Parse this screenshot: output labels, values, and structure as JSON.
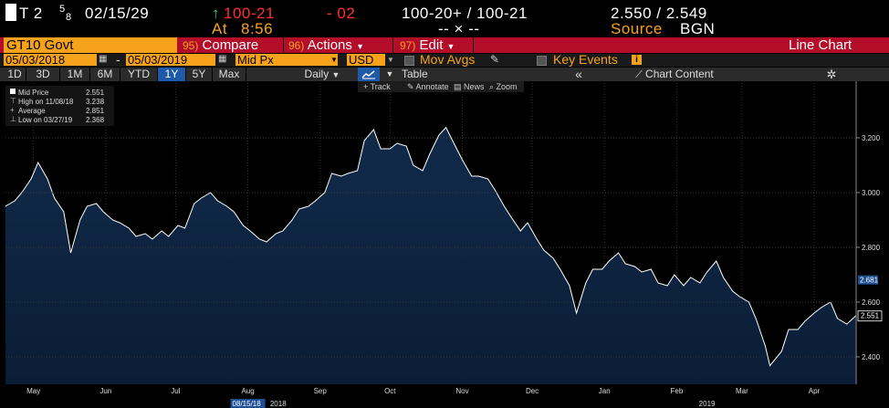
{
  "quote": {
    "security": "T 2",
    "coupon_num": "5",
    "coupon_den": "8",
    "maturity": "02/15/29",
    "arrow": "↑",
    "price": "100-21",
    "change": "- 02",
    "bid_ask": "100-20+ / 100-21",
    "yields": "2.550 / 2.549",
    "at_label": "At",
    "time": "8:56",
    "dashes": "-- × --",
    "source_label": "Source",
    "source": "BGN"
  },
  "menubar": {
    "ticker": "GT10 Govt",
    "compare_num": "95)",
    "compare": "Compare",
    "actions_num": "96)",
    "actions": "Actions",
    "edit_num": "97)",
    "edit": "Edit",
    "title": "Line Chart"
  },
  "toolbar2": {
    "start_date": "05/03/2018",
    "dash": "-",
    "end_date": "05/03/2019",
    "field": "Mid Px",
    "currency": "USD",
    "mov_avgs": "Mov Avgs",
    "key_events": "Key Events",
    "info_badge": "i"
  },
  "toolbar3": {
    "ranges": [
      "1D",
      "3D",
      "1M",
      "6M",
      "YTD",
      "1Y",
      "5Y",
      "Max"
    ],
    "selected": "1Y",
    "frequency": "Daily",
    "table": "Table",
    "collapse": "«",
    "chart_content": "Chart Content"
  },
  "chart_tools": [
    "Track",
    "Annotate",
    "News",
    "Zoom"
  ],
  "legend": {
    "rows": [
      {
        "label": "Mid Price",
        "value": "2.551"
      },
      {
        "label": "High on 11/08/18",
        "value": "3.238"
      },
      {
        "label": "Average",
        "value": "2.851"
      },
      {
        "label": "Low on 03/27/19",
        "value": "2.368"
      }
    ]
  },
  "colors": {
    "orange": "#f7a21b",
    "menu_red": "#b40d2a",
    "area_fill": "#0d2340",
    "line": "#ffffff",
    "selected": "#1f5aa8"
  },
  "chart_data": {
    "type": "area",
    "ylim": [
      2.3,
      3.4
    ],
    "yticks": [
      2.4,
      2.6,
      2.8,
      3.0,
      3.2
    ],
    "ytick_labels": [
      "2.400",
      "2.600",
      "2.800",
      "3.000",
      "3.200"
    ],
    "xtick_labels": [
      "May",
      "Jun",
      "Jul",
      "Aug",
      "Sep",
      "Oct",
      "Nov",
      "Dec",
      "Jan",
      "Feb",
      "Mar",
      "Apr"
    ],
    "xtick_dates": [
      "2018-05-15",
      "2018-06-15",
      "2018-07-15",
      "2018-08-15",
      "2018-09-15",
      "2018-10-15",
      "2018-11-15",
      "2018-12-15",
      "2019-01-15",
      "2019-02-15",
      "2019-03-15",
      "2019-04-15"
    ],
    "x_range": [
      "2018-05-03",
      "2019-05-03"
    ],
    "year_labels": [
      {
        "label": "2018",
        "date": "2018-08-28"
      },
      {
        "label": "2019",
        "date": "2019-02-28"
      }
    ],
    "crosshair_date_label": "08/15/18",
    "crosshair_date": "2018-08-15",
    "last_value_label": "2.551",
    "last_value": 2.551,
    "marker_value_label": "2.681",
    "marker_value": 2.681,
    "x": [
      "2018-05-03",
      "2018-05-07",
      "2018-05-10",
      "2018-05-14",
      "2018-05-17",
      "2018-05-21",
      "2018-05-24",
      "2018-05-28",
      "2018-05-31",
      "2018-06-04",
      "2018-06-07",
      "2018-06-11",
      "2018-06-14",
      "2018-06-18",
      "2018-06-21",
      "2018-06-25",
      "2018-06-28",
      "2018-07-02",
      "2018-07-05",
      "2018-07-09",
      "2018-07-12",
      "2018-07-16",
      "2018-07-19",
      "2018-07-23",
      "2018-07-26",
      "2018-07-30",
      "2018-08-02",
      "2018-08-06",
      "2018-08-09",
      "2018-08-13",
      "2018-08-16",
      "2018-08-20",
      "2018-08-23",
      "2018-08-27",
      "2018-08-30",
      "2018-09-03",
      "2018-09-06",
      "2018-09-10",
      "2018-09-13",
      "2018-09-17",
      "2018-09-20",
      "2018-09-24",
      "2018-09-27",
      "2018-10-01",
      "2018-10-04",
      "2018-10-08",
      "2018-10-11",
      "2018-10-15",
      "2018-10-18",
      "2018-10-22",
      "2018-10-25",
      "2018-10-29",
      "2018-11-01",
      "2018-11-05",
      "2018-11-08",
      "2018-11-12",
      "2018-11-15",
      "2018-11-19",
      "2018-11-22",
      "2018-11-26",
      "2018-11-29",
      "2018-12-03",
      "2018-12-06",
      "2018-12-10",
      "2018-12-13",
      "2018-12-17",
      "2018-12-20",
      "2018-12-24",
      "2018-12-27",
      "2018-12-31",
      "2019-01-03",
      "2019-01-07",
      "2019-01-10",
      "2019-01-14",
      "2019-01-17",
      "2019-01-21",
      "2019-01-24",
      "2019-01-28",
      "2019-01-31",
      "2019-02-04",
      "2019-02-07",
      "2019-02-11",
      "2019-02-14",
      "2019-02-18",
      "2019-02-21",
      "2019-02-25",
      "2019-02-28",
      "2019-03-04",
      "2019-03-07",
      "2019-03-11",
      "2019-03-14",
      "2019-03-18",
      "2019-03-21",
      "2019-03-25",
      "2019-03-27",
      "2019-04-01",
      "2019-04-04",
      "2019-04-08",
      "2019-04-11",
      "2019-04-15",
      "2019-04-18",
      "2019-04-22",
      "2019-04-25",
      "2019-04-29",
      "2019-05-03"
    ],
    "y": [
      2.95,
      2.97,
      3.0,
      3.05,
      3.11,
      3.05,
      2.98,
      2.93,
      2.78,
      2.9,
      2.95,
      2.96,
      2.93,
      2.9,
      2.89,
      2.87,
      2.84,
      2.85,
      2.83,
      2.86,
      2.84,
      2.88,
      2.87,
      2.96,
      2.98,
      3.0,
      2.97,
      2.95,
      2.93,
      2.88,
      2.86,
      2.83,
      2.82,
      2.85,
      2.86,
      2.9,
      2.94,
      2.95,
      2.97,
      3.0,
      3.07,
      3.06,
      3.07,
      3.08,
      3.19,
      3.23,
      3.16,
      3.16,
      3.18,
      3.17,
      3.1,
      3.08,
      3.14,
      3.21,
      3.238,
      3.17,
      3.12,
      3.06,
      3.06,
      3.05,
      3.01,
      2.95,
      2.91,
      2.86,
      2.89,
      2.83,
      2.79,
      2.76,
      2.72,
      2.66,
      2.56,
      2.67,
      2.72,
      2.72,
      2.75,
      2.78,
      2.74,
      2.73,
      2.71,
      2.72,
      2.67,
      2.66,
      2.7,
      2.66,
      2.69,
      2.67,
      2.71,
      2.75,
      2.69,
      2.64,
      2.62,
      2.6,
      2.54,
      2.44,
      2.368,
      2.42,
      2.5,
      2.5,
      2.53,
      2.56,
      2.58,
      2.6,
      2.54,
      2.52,
      2.551
    ]
  }
}
